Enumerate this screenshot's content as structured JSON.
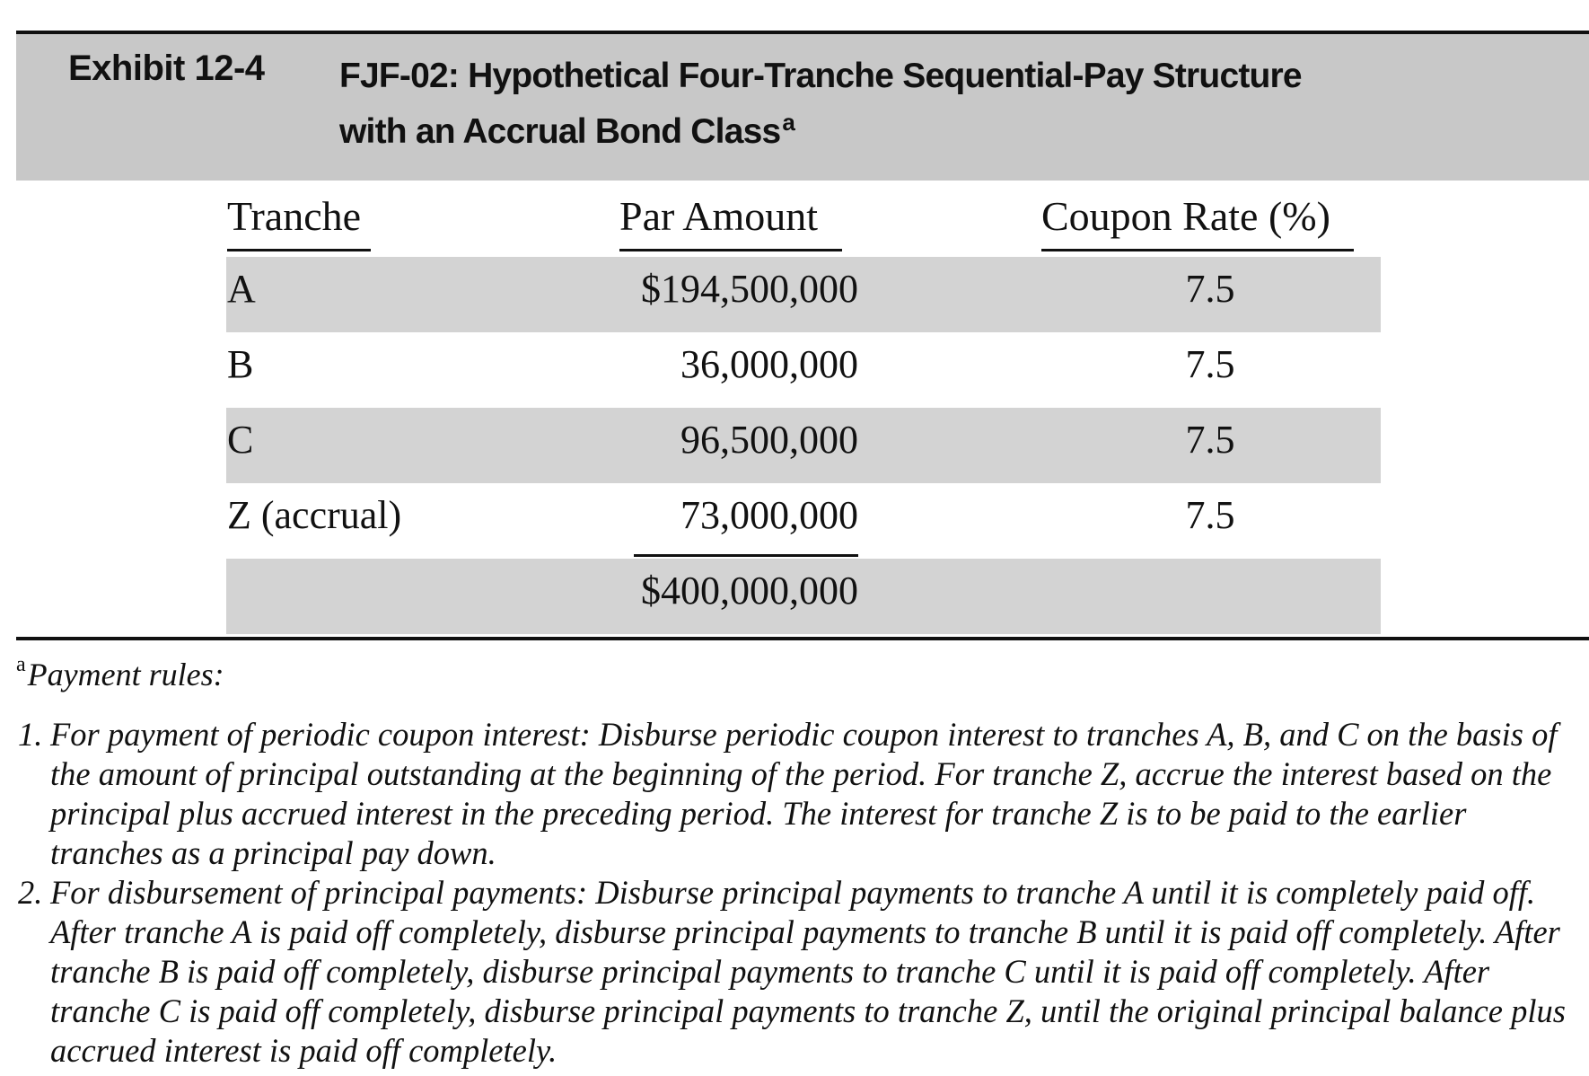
{
  "exhibit": {
    "label": "Exhibit 12-4",
    "title_line1": "FJF-02: Hypothetical Four-Tranche Sequential-Pay Structure",
    "title_line2": "with an Accrual Bond Class",
    "title_footnote_mark": "a"
  },
  "table": {
    "headers": {
      "tranche": "Tranche",
      "par_amount": "Par Amount",
      "coupon_rate": "Coupon Rate (%)"
    },
    "rows": [
      {
        "tranche": "A",
        "par_amount": "$194,500,000",
        "coupon_rate": "7.5"
      },
      {
        "tranche": "B",
        "par_amount": "36,000,000",
        "coupon_rate": "7.5"
      },
      {
        "tranche": "C",
        "par_amount": "96,500,000",
        "coupon_rate": "7.5"
      },
      {
        "tranche": "Z (accrual)",
        "par_amount": "73,000,000",
        "coupon_rate": "7.5"
      }
    ],
    "total_par_amount": "$400,000,000"
  },
  "footnote": {
    "mark": "a",
    "heading": "Payment rules:",
    "rules": [
      {
        "number": "1.",
        "text": "For payment of periodic coupon interest: Disburse periodic coupon interest to tranches A, B, and C on the basis of the amount of principal outstanding at the beginning of the period. For tranche Z, accrue the interest based on the principal plus accrued interest in the preceding period. The interest for tranche Z is to be paid to the earlier tranches as a principal pay down."
      },
      {
        "number": "2.",
        "text": "For disbursement of principal payments: Disburse principal payments to tranche A until it is completely paid off. After tranche A is paid off completely, disburse principal payments to tranche B until it is paid off completely. After tranche B is paid off completely, disburse principal payments to tranche C until it is paid off completely. After tranche C is paid off completely, disburse principal payments to tranche Z, until the original principal balance plus accrued interest is paid off completely."
      }
    ]
  }
}
